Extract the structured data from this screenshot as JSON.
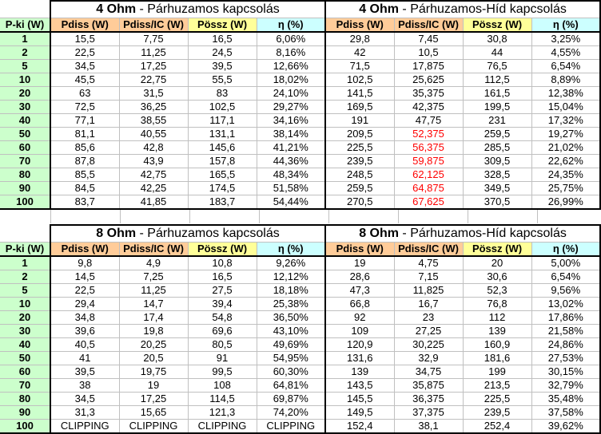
{
  "colors": {
    "pki": "#CCFFCC",
    "pdiss": "#FFCC99",
    "possz": "#FFFF99",
    "eta": "#CCFFFF",
    "highlight": "#FF0000"
  },
  "row_header": "P-ki (W)",
  "columns": [
    "Pdiss (W)",
    "Pdiss/IC (W)",
    "Pössz (W)",
    "η (%)"
  ],
  "pki": [
    "1",
    "2",
    "5",
    "10",
    "20",
    "30",
    "40",
    "50",
    "60",
    "70",
    "80",
    "90",
    "100"
  ],
  "tables": [
    {
      "blocks": [
        {
          "title_bold": "4 Ohm",
          "title_rest": " - Párhuzamos kapcsolás",
          "rows": [
            [
              "15,5",
              "7,75",
              "16,5",
              "6,06%"
            ],
            [
              "22,5",
              "11,25",
              "24,5",
              "8,16%"
            ],
            [
              "34,5",
              "17,25",
              "39,5",
              "12,66%"
            ],
            [
              "45,5",
              "22,75",
              "55,5",
              "18,02%"
            ],
            [
              "63",
              "31,5",
              "83",
              "24,10%"
            ],
            [
              "72,5",
              "36,25",
              "102,5",
              "29,27%"
            ],
            [
              "77,1",
              "38,55",
              "117,1",
              "34,16%"
            ],
            [
              "81,1",
              "40,55",
              "131,1",
              "38,14%"
            ],
            [
              "85,6",
              "42,8",
              "145,6",
              "41,21%"
            ],
            [
              "87,8",
              "43,9",
              "157,8",
              "44,36%"
            ],
            [
              "85,5",
              "42,75",
              "165,5",
              "48,34%"
            ],
            [
              "84,5",
              "42,25",
              "174,5",
              "51,58%"
            ],
            [
              "83,7",
              "41,85",
              "183,7",
              "54,44%"
            ]
          ],
          "red_rows": []
        },
        {
          "title_bold": "4 Ohm",
          "title_rest": " - Párhuzamos-Híd kapcsolás",
          "rows": [
            [
              "29,8",
              "7,45",
              "30,8",
              "3,25%"
            ],
            [
              "42",
              "10,5",
              "44",
              "4,55%"
            ],
            [
              "71,5",
              "17,875",
              "76,5",
              "6,54%"
            ],
            [
              "102,5",
              "25,625",
              "112,5",
              "8,89%"
            ],
            [
              "141,5",
              "35,375",
              "161,5",
              "12,38%"
            ],
            [
              "169,5",
              "42,375",
              "199,5",
              "15,04%"
            ],
            [
              "191",
              "47,75",
              "231",
              "17,32%"
            ],
            [
              "209,5",
              "52,375",
              "259,5",
              "19,27%"
            ],
            [
              "225,5",
              "56,375",
              "285,5",
              "21,02%"
            ],
            [
              "239,5",
              "59,875",
              "309,5",
              "22,62%"
            ],
            [
              "248,5",
              "62,125",
              "328,5",
              "24,35%"
            ],
            [
              "259,5",
              "64,875",
              "349,5",
              "25,75%"
            ],
            [
              "270,5",
              "67,625",
              "370,5",
              "26,99%"
            ]
          ],
          "red_rows": [
            7,
            8,
            9,
            10,
            11,
            12
          ]
        }
      ]
    },
    {
      "blocks": [
        {
          "title_bold": "8 Ohm",
          "title_rest": " - Párhuzamos kapcsolás",
          "rows": [
            [
              "9,8",
              "4,9",
              "10,8",
              "9,26%"
            ],
            [
              "14,5",
              "7,25",
              "16,5",
              "12,12%"
            ],
            [
              "22,5",
              "11,25",
              "27,5",
              "18,18%"
            ],
            [
              "29,4",
              "14,7",
              "39,4",
              "25,38%"
            ],
            [
              "34,8",
              "17,4",
              "54,8",
              "36,50%"
            ],
            [
              "39,6",
              "19,8",
              "69,6",
              "43,10%"
            ],
            [
              "40,5",
              "20,25",
              "80,5",
              "49,69%"
            ],
            [
              "41",
              "20,5",
              "91",
              "54,95%"
            ],
            [
              "39,5",
              "19,75",
              "99,5",
              "60,30%"
            ],
            [
              "38",
              "19",
              "108",
              "64,81%"
            ],
            [
              "34,5",
              "17,25",
              "114,5",
              "69,87%"
            ],
            [
              "31,3",
              "15,65",
              "121,3",
              "74,20%"
            ],
            [
              "CLIPPING",
              "CLIPPING",
              "CLIPPING",
              "CLIPPING"
            ]
          ],
          "red_rows": []
        },
        {
          "title_bold": "8 Ohm",
          "title_rest": " - Párhuzamos-Híd kapcsolás",
          "rows": [
            [
              "19",
              "4,75",
              "20",
              "5,00%"
            ],
            [
              "28,6",
              "7,15",
              "30,6",
              "6,54%"
            ],
            [
              "47,3",
              "11,825",
              "52,3",
              "9,56%"
            ],
            [
              "66,8",
              "16,7",
              "76,8",
              "13,02%"
            ],
            [
              "92",
              "23",
              "112",
              "17,86%"
            ],
            [
              "109",
              "27,25",
              "139",
              "21,58%"
            ],
            [
              "120,9",
              "30,225",
              "160,9",
              "24,86%"
            ],
            [
              "131,6",
              "32,9",
              "181,6",
              "27,53%"
            ],
            [
              "139",
              "34,75",
              "199",
              "30,15%"
            ],
            [
              "143,5",
              "35,875",
              "213,5",
              "32,79%"
            ],
            [
              "145,5",
              "36,375",
              "225,5",
              "35,48%"
            ],
            [
              "149,5",
              "37,375",
              "239,5",
              "37,58%"
            ],
            [
              "152,4",
              "38,1",
              "252,4",
              "39,62%"
            ]
          ],
          "red_rows": []
        }
      ]
    }
  ]
}
